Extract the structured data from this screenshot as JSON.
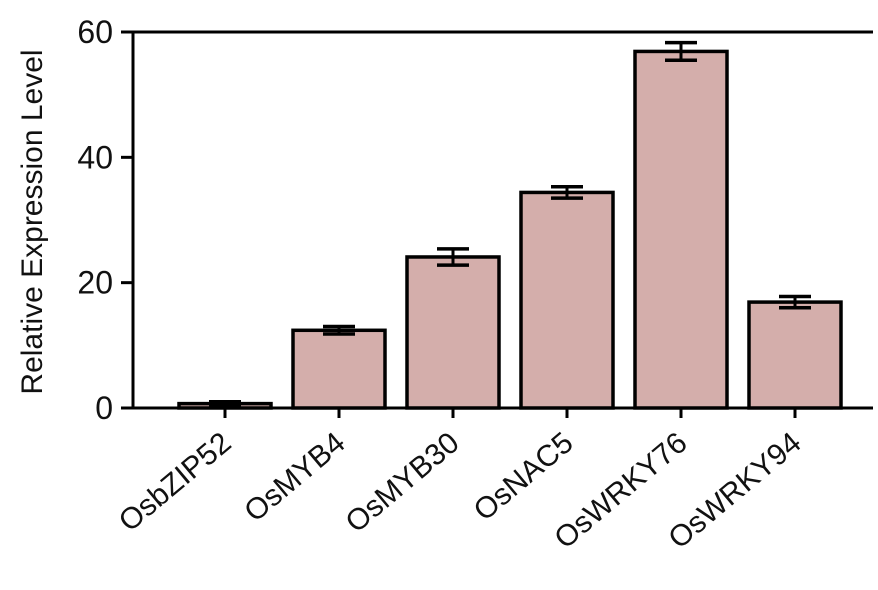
{
  "chart_data": {
    "type": "bar",
    "title": "",
    "xlabel": "",
    "ylabel": "Relative Expression Level",
    "categories": [
      "OsbZIP52",
      "OsMYB4",
      "OsMYB30",
      "OsNAC5",
      "OsWRKY76",
      "OsWRKY94"
    ],
    "values": [
      0.7,
      12.4,
      24.1,
      34.4,
      56.9,
      16.9
    ],
    "errors": [
      0.3,
      0.6,
      1.3,
      0.9,
      1.4,
      0.9
    ],
    "ylim": [
      0,
      60
    ],
    "yticks": [
      "0",
      "20",
      "40",
      "60"
    ],
    "grid": false,
    "colors": {
      "bar_fill": "#d4aeab",
      "bar_stroke": "#000000",
      "axis": "#000000"
    }
  }
}
